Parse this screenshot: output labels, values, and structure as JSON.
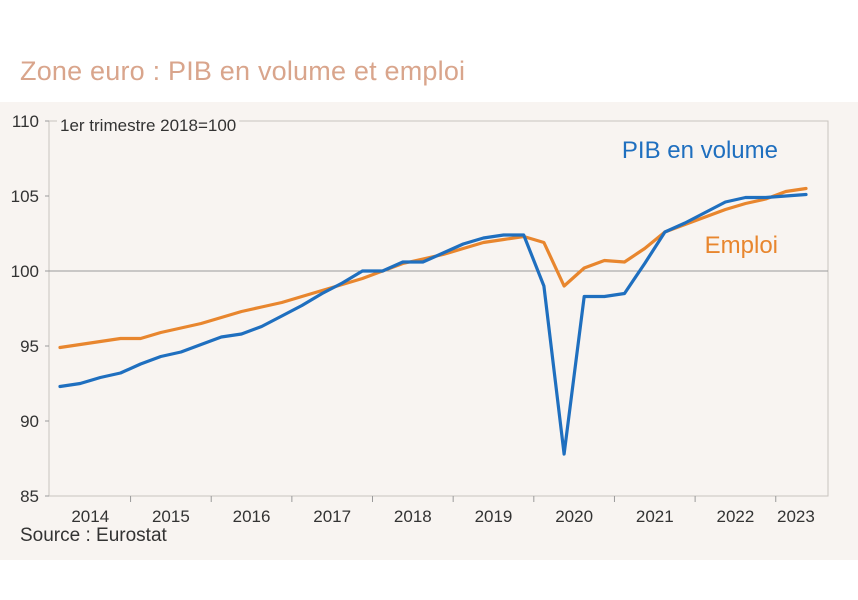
{
  "title": "Zone euro : PIB en volume et emploi",
  "source": "Source : Eurostat",
  "chart_data": {
    "type": "line",
    "unit_label": "1er trimestre 2018=100",
    "ylim": [
      85,
      110
    ],
    "y_ticks": [
      "85",
      "90",
      "95",
      "100",
      "105",
      "110"
    ],
    "x_ticks": [
      "2014",
      "2015",
      "2016",
      "2017",
      "2018",
      "2019",
      "2020",
      "2021",
      "2022",
      "2023"
    ],
    "reference_line": 100,
    "grid": false,
    "colors": {
      "pib": "#1f6fbf",
      "emploi": "#e8862e"
    },
    "series": [
      {
        "name": "PIB en volume",
        "values": [
          92.3,
          92.5,
          92.9,
          93.2,
          93.8,
          94.3,
          94.6,
          95.1,
          95.6,
          95.8,
          96.3,
          97.0,
          97.7,
          98.5,
          99.2,
          100.0,
          100.0,
          100.6,
          100.6,
          101.2,
          101.8,
          102.2,
          102.4,
          102.4,
          99.0,
          87.8,
          98.3,
          98.3,
          98.5,
          100.5,
          102.6,
          103.2,
          103.9,
          104.6,
          104.9,
          104.9,
          105.0,
          105.1
        ]
      },
      {
        "name": "Emploi",
        "values": [
          94.9,
          95.1,
          95.3,
          95.5,
          95.5,
          95.9,
          96.2,
          96.5,
          96.9,
          97.3,
          97.6,
          97.9,
          98.3,
          98.7,
          99.1,
          99.5,
          100.0,
          100.5,
          100.8,
          101.1,
          101.5,
          101.9,
          102.1,
          102.3,
          101.9,
          99.0,
          100.2,
          100.7,
          100.6,
          101.5,
          102.6,
          103.1,
          103.6,
          104.1,
          104.5,
          104.8,
          105.3,
          105.5
        ]
      }
    ]
  }
}
